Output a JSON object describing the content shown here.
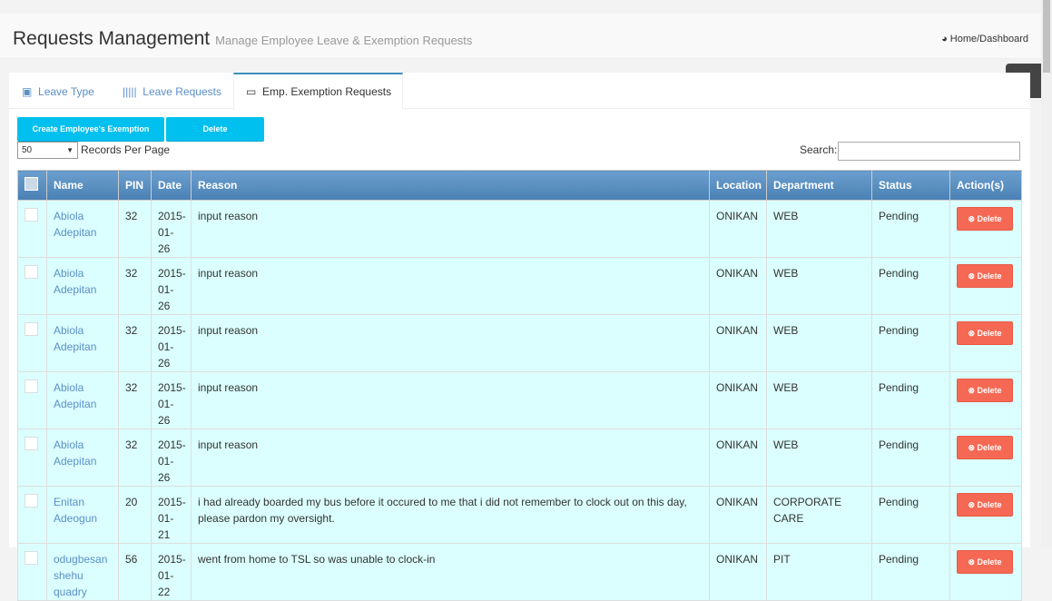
{
  "header": {
    "title": "Requests Management",
    "subtitle": "Manage Employee Leave & Exemption Requests",
    "breadcrumb": "Home/Dashboard"
  },
  "tabs": [
    {
      "label": "Leave Type",
      "icon": "image-icon"
    },
    {
      "label": "Leave Requests",
      "icon": "barcode-icon"
    },
    {
      "label": "Emp. Exemption Requests",
      "icon": "credit-card-icon",
      "active": true
    }
  ],
  "toolbar": {
    "create_label": "Create Employee's Exemption",
    "delete_label": "Delete",
    "records_value": "50",
    "records_label": "Records Per Page",
    "search_label": "Search:",
    "search_value": ""
  },
  "table": {
    "columns": [
      "Name",
      "PIN",
      "Date",
      "Reason",
      "Location",
      "Department",
      "Status",
      "Action(s)"
    ],
    "action_label": "Delete",
    "rows": [
      {
        "name": "Abiola Adepitan",
        "pin": "32",
        "date": "2015-01-26",
        "reason": "input reason",
        "location": "ONIKAN",
        "department": "WEB",
        "status": "Pending"
      },
      {
        "name": "Abiola Adepitan",
        "pin": "32",
        "date": "2015-01-26",
        "reason": "input reason",
        "location": "ONIKAN",
        "department": "WEB",
        "status": "Pending"
      },
      {
        "name": "Abiola Adepitan",
        "pin": "32",
        "date": "2015-01-26",
        "reason": "input reason",
        "location": "ONIKAN",
        "department": "WEB",
        "status": "Pending"
      },
      {
        "name": "Abiola Adepitan",
        "pin": "32",
        "date": "2015-01-26",
        "reason": "input reason",
        "location": "ONIKAN",
        "department": "WEB",
        "status": "Pending"
      },
      {
        "name": "Abiola Adepitan",
        "pin": "32",
        "date": "2015-01-26",
        "reason": "input reason",
        "location": "ONIKAN",
        "department": "WEB",
        "status": "Pending"
      },
      {
        "name": "Enitan Adeogun",
        "pin": "20",
        "date": "2015-01-21",
        "reason": "i had already boarded my bus before it occured to me that i did not remember to clock out on this day, please pardon my oversight.",
        "location": "ONIKAN",
        "department": "CORPORATE CARE",
        "status": "Pending"
      },
      {
        "name": "odugbesan shehu quadry",
        "pin": "56",
        "date": "2015-01-22",
        "reason": "went from home to TSL so was unable to clock-in",
        "location": "ONIKAN",
        "department": "PIT",
        "status": "Pending"
      }
    ]
  },
  "colors": {
    "accent": "#00c0ef",
    "danger": "#f56954",
    "row_bg": "#dbffff",
    "header_bg": "#4a80b3"
  }
}
